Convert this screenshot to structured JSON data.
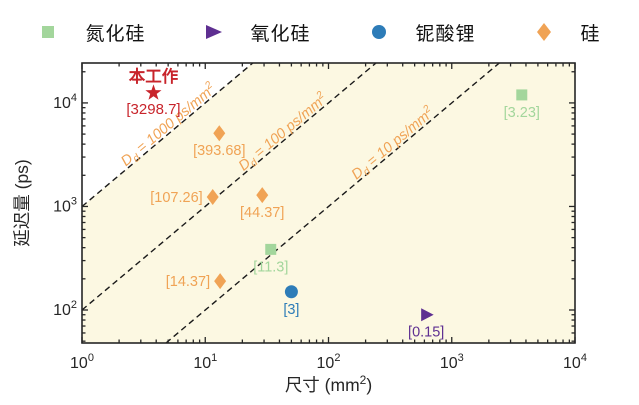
{
  "figure": {
    "background": "#ffffff"
  },
  "legend": {
    "items": [
      {
        "label": "氮化硅",
        "marker": "square",
        "color": "#a3d69c"
      },
      {
        "label": "氧化硅",
        "marker": "triangle-right",
        "color": "#5e2f91"
      },
      {
        "label": "铌酸锂",
        "marker": "circle",
        "color": "#2d7cb8"
      },
      {
        "label": "硅",
        "marker": "diamond",
        "color": "#f0a355"
      }
    ]
  },
  "chart_data": {
    "type": "scatter",
    "x_scale": "log",
    "y_scale": "log",
    "xlim": [
      1,
      10000
    ],
    "ylim": [
      48,
      24300
    ],
    "xlabel": {
      "text": "尺寸 (mm",
      "sup": "2",
      "end": ")"
    },
    "ylabel": "延迟量 (ps)",
    "tick_base": "10",
    "x_tick_exponents": [
      0,
      1,
      2,
      3,
      4
    ],
    "y_tick_exponents": [
      2,
      3,
      4
    ],
    "grid": false,
    "plot_bg": "#fcf8e2",
    "above_region_bg": "#ffffff",
    "axis_color": "#262626",
    "dash_color": "#1a1a1a",
    "guide_label_style": {
      "sym": "D",
      "sub": "d",
      "eq": " = ",
      "unit": " ps/mm",
      "unit_sup": "2",
      "color": "#f0a355"
    },
    "guide_lines": [
      {
        "value": "1000",
        "anchor_x": 5.3
      },
      {
        "value": "100",
        "anchor_x": 45
      },
      {
        "value": "10",
        "anchor_x": 350
      }
    ],
    "series": [
      {
        "name": "氮化硅",
        "marker": "square",
        "color": "#a3d69c",
        "points": [
          {
            "x": 34,
            "y": 385,
            "label": "[11.3]",
            "label_pos": "below"
          },
          {
            "x": 3700,
            "y": 11950,
            "label": "[3.23]",
            "label_pos": "below"
          }
        ]
      },
      {
        "name": "氧化硅",
        "marker": "triangle-right",
        "color": "#5e2f91",
        "points": [
          {
            "x": 620,
            "y": 90,
            "label": "[0.15]",
            "label_pos": "below"
          }
        ]
      },
      {
        "name": "铌酸锂",
        "marker": "circle",
        "color": "#2d7cb8",
        "points": [
          {
            "x": 50,
            "y": 150,
            "label": "[3]",
            "label_pos": "below"
          }
        ]
      },
      {
        "name": "硅",
        "marker": "diamond",
        "color": "#f0a355",
        "points": [
          {
            "x": 13,
            "y": 5100,
            "label": "[393.68]",
            "label_pos": "below"
          },
          {
            "x": 11.5,
            "y": 1233,
            "label": "[107.26]",
            "label_pos": "left"
          },
          {
            "x": 29,
            "y": 1287,
            "label": "[44.37]",
            "label_pos": "below"
          },
          {
            "x": 13.2,
            "y": 190,
            "label": "[14.37]",
            "label_pos": "left"
          }
        ]
      }
    ],
    "highlight": {
      "name": "本工作",
      "marker": "star",
      "color": "#c8242b",
      "x": 3.8,
      "y": 12500,
      "label": "[3298.7]"
    }
  }
}
